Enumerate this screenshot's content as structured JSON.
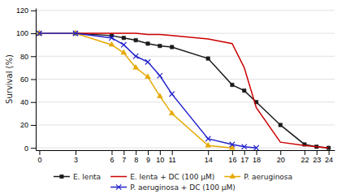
{
  "chart_data": {
    "type": "line",
    "ylabel": "Survival (%)",
    "xlim": [
      -0.3,
      24.5
    ],
    "xticks": [
      0,
      3,
      6,
      7,
      8,
      9,
      10,
      11,
      14,
      16,
      17,
      18,
      20,
      22,
      23,
      24
    ],
    "ylim": [
      -2,
      122
    ],
    "yticks": [
      0,
      20,
      40,
      60,
      80,
      100,
      120
    ],
    "grid": true,
    "legend": "bottom",
    "series": [
      {
        "name": "E. lenta",
        "color": "#1a1a1a",
        "marker": "square",
        "x": [
          0,
          3,
          6,
          7,
          8,
          9,
          10,
          11,
          14,
          16,
          17,
          18,
          20,
          22,
          23,
          24
        ],
        "values": [
          100,
          100,
          98,
          96,
          94,
          91,
          89,
          88,
          78,
          55,
          50,
          40,
          20,
          3,
          1,
          0
        ]
      },
      {
        "name": "E. lenta + DC (100 μM)",
        "color": "#cc0000",
        "marker": "none",
        "x": [
          0,
          3,
          6,
          7,
          8,
          9,
          10,
          11,
          14,
          16,
          17,
          18,
          20,
          22,
          23,
          24
        ],
        "values": [
          100,
          100,
          100,
          100,
          100,
          99,
          99,
          98,
          95,
          91,
          70,
          35,
          5,
          2,
          1,
          0
        ]
      },
      {
        "name": "P. aeruginosa",
        "color": "#e6a800",
        "marker": "triangle",
        "x": [
          0,
          3,
          6,
          7,
          8,
          9,
          10,
          11,
          14,
          16
        ],
        "values": [
          100,
          100,
          90,
          83,
          70,
          62,
          45,
          30,
          2,
          0
        ]
      },
      {
        "name": "P. aeruginosa + DC (100 μM)",
        "color": "#2222cc",
        "marker": "cross",
        "x": [
          0,
          3,
          6,
          7,
          8,
          9,
          10,
          11,
          14,
          16,
          17,
          18
        ],
        "values": [
          100,
          100,
          96,
          90,
          80,
          75,
          63,
          47,
          8,
          3,
          1,
          0
        ]
      }
    ]
  }
}
